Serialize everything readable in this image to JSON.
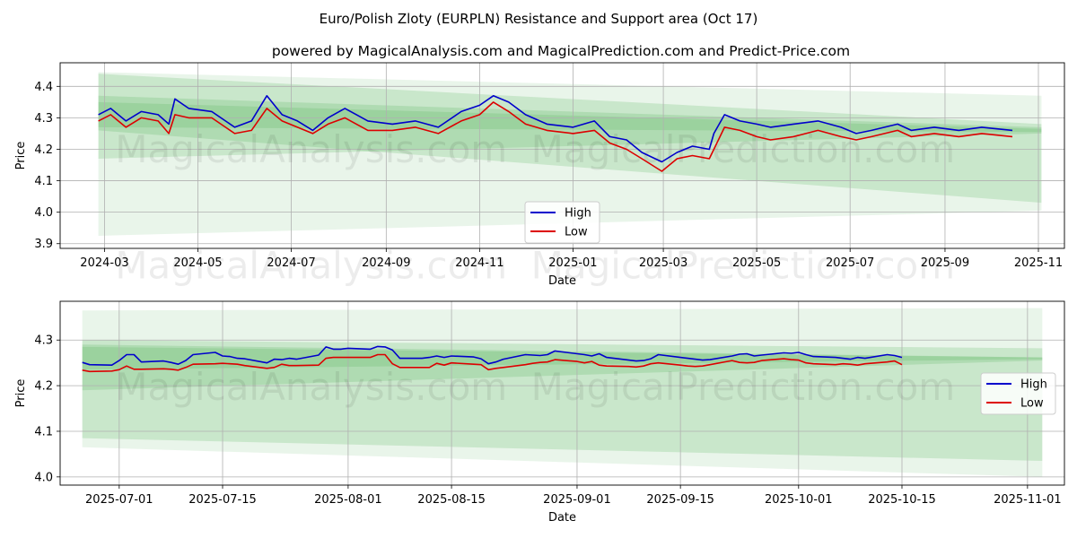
{
  "title": "Euro/Polish Zloty (EURPLN) Resistance and Support area (Oct 17)",
  "subtitle": "powered by MagicalAnalysis.com and MagicalPrediction.com and Predict-Price.com",
  "watermarks": [
    "MagicalAnalysis.com",
    "MagicalPrediction.com"
  ],
  "colors": {
    "high": "#0000cc",
    "low": "#dd0000",
    "band": "#4caf50",
    "grid": "#b0b0b0"
  },
  "chart_data": [
    {
      "type": "line",
      "xlabel": "Date",
      "ylabel": "Price",
      "xlim": [
        "2024-02-01",
        "2025-11-18"
      ],
      "ylim": [
        3.885,
        4.475
      ],
      "xticks": [
        "2024-03-01",
        "2024-05-01",
        "2024-07-01",
        "2024-09-01",
        "2024-11-01",
        "2025-01-01",
        "2025-03-01",
        "2025-05-01",
        "2025-07-01",
        "2025-09-01",
        "2025-11-01"
      ],
      "xtick_labels": [
        "2024-03",
        "2024-05",
        "2024-07",
        "2024-09",
        "2024-11",
        "2025-01",
        "2025-03",
        "2025-05",
        "2025-07",
        "2025-09",
        "2025-11"
      ],
      "yticks": [
        3.9,
        4.0,
        4.1,
        4.2,
        4.3,
        4.4
      ],
      "ytick_labels": [
        "3.9",
        "4.0",
        "4.1",
        "4.2",
        "4.3",
        "4.4"
      ],
      "grid": true,
      "legend": {
        "position": "lower-center",
        "entries": [
          "High",
          "Low"
        ]
      },
      "bands": [
        {
          "x": [
            "2024-02-26",
            "2025-11-03"
          ],
          "upper": [
            4.445,
            4.37
          ],
          "lower": [
            3.925,
            4.005
          ],
          "opacity": 0.12
        },
        {
          "x": [
            "2024-02-26",
            "2025-11-03"
          ],
          "upper": [
            4.44,
            4.28
          ],
          "lower": [
            4.17,
            4.25
          ],
          "opacity": 0.2
        },
        {
          "x": [
            "2024-02-26",
            "2025-11-03"
          ],
          "upper": [
            4.37,
            4.27
          ],
          "lower": [
            4.26,
            4.03
          ],
          "opacity": 0.2
        },
        {
          "x": [
            "2024-02-26",
            "2025-11-03"
          ],
          "upper": [
            4.35,
            4.265
          ],
          "lower": [
            4.27,
            4.255
          ],
          "opacity": 0.2
        }
      ],
      "series": [
        {
          "name": "High",
          "x": [
            "2024-02-26",
            "2024-03-05",
            "2024-03-15",
            "2024-03-25",
            "2024-04-05",
            "2024-04-12",
            "2024-04-16",
            "2024-04-25",
            "2024-05-10",
            "2024-05-25",
            "2024-06-05",
            "2024-06-15",
            "2024-06-25",
            "2024-07-05",
            "2024-07-15",
            "2024-07-25",
            "2024-08-05",
            "2024-08-20",
            "2024-09-05",
            "2024-09-20",
            "2024-10-05",
            "2024-10-20",
            "2024-11-01",
            "2024-11-10",
            "2024-11-20",
            "2024-12-01",
            "2024-12-15",
            "2025-01-01",
            "2025-01-15",
            "2025-01-25",
            "2025-02-05",
            "2025-02-15",
            "2025-02-28",
            "2025-03-10",
            "2025-03-20",
            "2025-03-31",
            "2025-04-03",
            "2025-04-10",
            "2025-04-20",
            "2025-05-01",
            "2025-05-10",
            "2025-05-25",
            "2025-06-10",
            "2025-06-25",
            "2025-07-05",
            "2025-07-15",
            "2025-08-01",
            "2025-08-10",
            "2025-08-25",
            "2025-09-10",
            "2025-09-25",
            "2025-10-15"
          ],
          "values": [
            4.31,
            4.33,
            4.29,
            4.32,
            4.31,
            4.28,
            4.36,
            4.33,
            4.32,
            4.27,
            4.29,
            4.37,
            4.31,
            4.29,
            4.26,
            4.3,
            4.33,
            4.29,
            4.28,
            4.29,
            4.27,
            4.32,
            4.34,
            4.37,
            4.35,
            4.31,
            4.28,
            4.27,
            4.29,
            4.24,
            4.23,
            4.19,
            4.16,
            4.19,
            4.21,
            4.2,
            4.25,
            4.31,
            4.29,
            4.28,
            4.27,
            4.28,
            4.29,
            4.27,
            4.25,
            4.26,
            4.28,
            4.26,
            4.27,
            4.26,
            4.27,
            4.26
          ]
        },
        {
          "name": "Low",
          "x": [
            "2024-02-26",
            "2024-03-05",
            "2024-03-15",
            "2024-03-25",
            "2024-04-05",
            "2024-04-12",
            "2024-04-16",
            "2024-04-25",
            "2024-05-10",
            "2024-05-25",
            "2024-06-05",
            "2024-06-15",
            "2024-06-25",
            "2024-07-05",
            "2024-07-15",
            "2024-07-25",
            "2024-08-05",
            "2024-08-20",
            "2024-09-05",
            "2024-09-20",
            "2024-10-05",
            "2024-10-20",
            "2024-11-01",
            "2024-11-10",
            "2024-11-20",
            "2024-12-01",
            "2024-12-15",
            "2025-01-01",
            "2025-01-15",
            "2025-01-25",
            "2025-02-05",
            "2025-02-15",
            "2025-02-28",
            "2025-03-10",
            "2025-03-20",
            "2025-03-31",
            "2025-04-03",
            "2025-04-10",
            "2025-04-20",
            "2025-05-01",
            "2025-05-10",
            "2025-05-25",
            "2025-06-10",
            "2025-06-25",
            "2025-07-05",
            "2025-07-15",
            "2025-08-01",
            "2025-08-10",
            "2025-08-25",
            "2025-09-10",
            "2025-09-25",
            "2025-10-15"
          ],
          "values": [
            4.29,
            4.31,
            4.27,
            4.3,
            4.29,
            4.25,
            4.31,
            4.3,
            4.3,
            4.25,
            4.26,
            4.33,
            4.29,
            4.27,
            4.25,
            4.28,
            4.3,
            4.26,
            4.26,
            4.27,
            4.25,
            4.29,
            4.31,
            4.35,
            4.32,
            4.28,
            4.26,
            4.25,
            4.26,
            4.22,
            4.2,
            4.17,
            4.13,
            4.17,
            4.18,
            4.17,
            4.2,
            4.27,
            4.26,
            4.24,
            4.23,
            4.24,
            4.26,
            4.24,
            4.23,
            4.24,
            4.26,
            4.24,
            4.25,
            4.24,
            4.25,
            4.24
          ]
        }
      ]
    },
    {
      "type": "line",
      "xlabel": "Date",
      "ylabel": "Price",
      "xlim": [
        "2025-06-23",
        "2025-11-06"
      ],
      "ylim": [
        3.982,
        4.385
      ],
      "xticks": [
        "2025-07-01",
        "2025-07-15",
        "2025-08-01",
        "2025-08-15",
        "2025-09-01",
        "2025-09-15",
        "2025-10-01",
        "2025-10-15",
        "2025-11-01"
      ],
      "xtick_labels": [
        "2025-07-01",
        "2025-07-15",
        "2025-08-01",
        "2025-08-15",
        "2025-09-01",
        "2025-09-15",
        "2025-10-01",
        "2025-10-15",
        "2025-11-01"
      ],
      "yticks": [
        4.0,
        4.1,
        4.2,
        4.3
      ],
      "ytick_labels": [
        "4.0",
        "4.1",
        "4.2",
        "4.3"
      ],
      "grid": true,
      "legend": {
        "position": "center-right",
        "entries": [
          "High",
          "Low"
        ]
      },
      "bands": [
        {
          "x": [
            "2025-06-26",
            "2025-11-03"
          ],
          "upper": [
            4.365,
            4.37
          ],
          "lower": [
            4.065,
            4.0
          ],
          "opacity": 0.12
        },
        {
          "x": [
            "2025-06-26",
            "2025-11-03"
          ],
          "upper": [
            4.3,
            4.282
          ],
          "lower": [
            4.085,
            4.035
          ],
          "opacity": 0.2
        },
        {
          "x": [
            "2025-06-26",
            "2025-11-03"
          ],
          "upper": [
            4.29,
            4.262
          ],
          "lower": [
            4.19,
            4.255
          ],
          "opacity": 0.2
        },
        {
          "x": [
            "2025-06-26",
            "2025-11-03"
          ],
          "upper": [
            4.285,
            4.262
          ],
          "lower": [
            4.235,
            4.258
          ],
          "opacity": 0.2
        }
      ],
      "series": [
        {
          "name": "High",
          "x": [
            "2025-06-26",
            "2025-06-27",
            "2025-06-30",
            "2025-07-01",
            "2025-07-02",
            "2025-07-03",
            "2025-07-04",
            "2025-07-07",
            "2025-07-08",
            "2025-07-09",
            "2025-07-10",
            "2025-07-11",
            "2025-07-14",
            "2025-07-15",
            "2025-07-16",
            "2025-07-17",
            "2025-07-18",
            "2025-07-21",
            "2025-07-22",
            "2025-07-23",
            "2025-07-24",
            "2025-07-25",
            "2025-07-28",
            "2025-07-29",
            "2025-07-30",
            "2025-07-31",
            "2025-08-01",
            "2025-08-04",
            "2025-08-05",
            "2025-08-06",
            "2025-08-07",
            "2025-08-08",
            "2025-08-11",
            "2025-08-12",
            "2025-08-13",
            "2025-08-14",
            "2025-08-15",
            "2025-08-18",
            "2025-08-19",
            "2025-08-20",
            "2025-08-21",
            "2025-08-22",
            "2025-08-25",
            "2025-08-26",
            "2025-08-27",
            "2025-08-28",
            "2025-08-29",
            "2025-09-01",
            "2025-09-02",
            "2025-09-03",
            "2025-09-04",
            "2025-09-05",
            "2025-09-08",
            "2025-09-09",
            "2025-09-10",
            "2025-09-11",
            "2025-09-12",
            "2025-09-15",
            "2025-09-16",
            "2025-09-17",
            "2025-09-18",
            "2025-09-19",
            "2025-09-22",
            "2025-09-23",
            "2025-09-24",
            "2025-09-25",
            "2025-09-26",
            "2025-09-29",
            "2025-09-30",
            "2025-10-01",
            "2025-10-02",
            "2025-10-03",
            "2025-10-06",
            "2025-10-07",
            "2025-10-08",
            "2025-10-09",
            "2025-10-10",
            "2025-10-13",
            "2025-10-14",
            "2025-10-15"
          ],
          "values": [
            4.251,
            4.246,
            4.245,
            4.255,
            4.268,
            4.268,
            4.252,
            4.254,
            4.251,
            4.247,
            4.255,
            4.268,
            4.273,
            4.265,
            4.264,
            4.26,
            4.259,
            4.25,
            4.258,
            4.257,
            4.26,
            4.258,
            4.267,
            4.285,
            4.28,
            4.28,
            4.282,
            4.28,
            4.286,
            4.285,
            4.278,
            4.26,
            4.26,
            4.262,
            4.265,
            4.262,
            4.265,
            4.263,
            4.259,
            4.248,
            4.252,
            4.258,
            4.268,
            4.267,
            4.266,
            4.268,
            4.276,
            4.27,
            4.268,
            4.265,
            4.27,
            4.262,
            4.256,
            4.254,
            4.255,
            4.259,
            4.268,
            4.262,
            4.26,
            4.258,
            4.256,
            4.257,
            4.265,
            4.269,
            4.27,
            4.265,
            4.267,
            4.272,
            4.271,
            4.273,
            4.268,
            4.264,
            4.262,
            4.26,
            4.258,
            4.262,
            4.26,
            4.268,
            4.266,
            4.262
          ]
        },
        {
          "name": "Low",
          "x": [
            "2025-06-26",
            "2025-06-27",
            "2025-06-30",
            "2025-07-01",
            "2025-07-02",
            "2025-07-03",
            "2025-07-04",
            "2025-07-07",
            "2025-07-08",
            "2025-07-09",
            "2025-07-10",
            "2025-07-11",
            "2025-07-14",
            "2025-07-15",
            "2025-07-16",
            "2025-07-17",
            "2025-07-18",
            "2025-07-21",
            "2025-07-22",
            "2025-07-23",
            "2025-07-24",
            "2025-07-25",
            "2025-07-28",
            "2025-07-29",
            "2025-07-30",
            "2025-07-31",
            "2025-08-01",
            "2025-08-04",
            "2025-08-05",
            "2025-08-06",
            "2025-08-07",
            "2025-08-08",
            "2025-08-11",
            "2025-08-12",
            "2025-08-13",
            "2025-08-14",
            "2025-08-15",
            "2025-08-18",
            "2025-08-19",
            "2025-08-20",
            "2025-08-21",
            "2025-08-22",
            "2025-08-25",
            "2025-08-26",
            "2025-08-27",
            "2025-08-28",
            "2025-08-29",
            "2025-09-01",
            "2025-09-02",
            "2025-09-03",
            "2025-09-04",
            "2025-09-05",
            "2025-09-08",
            "2025-09-09",
            "2025-09-10",
            "2025-09-11",
            "2025-09-12",
            "2025-09-15",
            "2025-09-16",
            "2025-09-17",
            "2025-09-18",
            "2025-09-19",
            "2025-09-22",
            "2025-09-23",
            "2025-09-24",
            "2025-09-25",
            "2025-09-26",
            "2025-09-29",
            "2025-09-30",
            "2025-10-01",
            "2025-10-02",
            "2025-10-03",
            "2025-10-06",
            "2025-10-07",
            "2025-10-08",
            "2025-10-09",
            "2025-10-10",
            "2025-10-13",
            "2025-10-14",
            "2025-10-15"
          ],
          "values": [
            4.234,
            4.231,
            4.232,
            4.235,
            4.243,
            4.236,
            4.236,
            4.237,
            4.236,
            4.234,
            4.24,
            4.247,
            4.248,
            4.249,
            4.248,
            4.247,
            4.244,
            4.238,
            4.24,
            4.247,
            4.244,
            4.244,
            4.245,
            4.26,
            4.262,
            4.262,
            4.262,
            4.262,
            4.268,
            4.268,
            4.248,
            4.24,
            4.24,
            4.24,
            4.249,
            4.245,
            4.25,
            4.247,
            4.246,
            4.235,
            4.238,
            4.24,
            4.246,
            4.249,
            4.251,
            4.252,
            4.257,
            4.253,
            4.25,
            4.253,
            4.245,
            4.243,
            4.242,
            4.241,
            4.243,
            4.248,
            4.25,
            4.245,
            4.243,
            4.242,
            4.243,
            4.246,
            4.255,
            4.251,
            4.25,
            4.251,
            4.255,
            4.259,
            4.257,
            4.256,
            4.25,
            4.248,
            4.246,
            4.248,
            4.247,
            4.245,
            4.248,
            4.252,
            4.254,
            4.246
          ]
        }
      ]
    }
  ]
}
